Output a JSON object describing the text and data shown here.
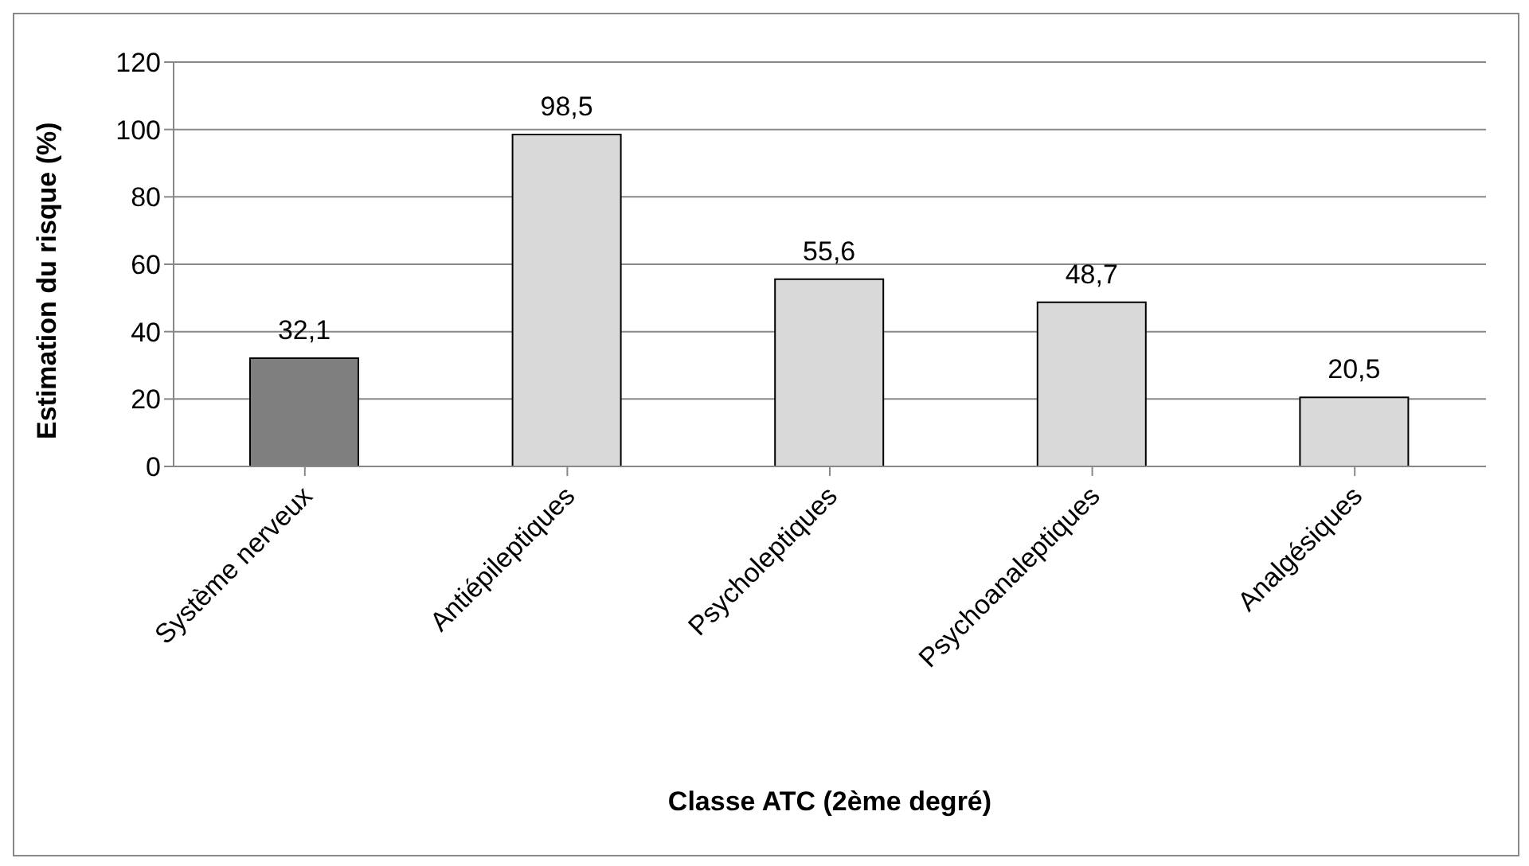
{
  "chart_data": {
    "type": "bar",
    "xlabel": "Classe ATC (2ème degré)",
    "ylabel": "Estimation du risque (%)",
    "categories": [
      "Système nerveux",
      "Antiépileptiques",
      "Psycholeptiques",
      "Psychoanaleptiques",
      "Analgésiques"
    ],
    "values": [
      32.1,
      98.5,
      55.6,
      48.7,
      20.5
    ],
    "value_labels": [
      "32,1",
      "98,5",
      "55,6",
      "48,7",
      "20,5"
    ],
    "colors": [
      "#7f7f7f",
      "#d9d9d9",
      "#d9d9d9",
      "#d9d9d9",
      "#d9d9d9"
    ],
    "ylim": [
      0,
      120
    ],
    "yticks": [
      0,
      20,
      40,
      60,
      80,
      100,
      120
    ],
    "grid": "y",
    "legend": false
  }
}
